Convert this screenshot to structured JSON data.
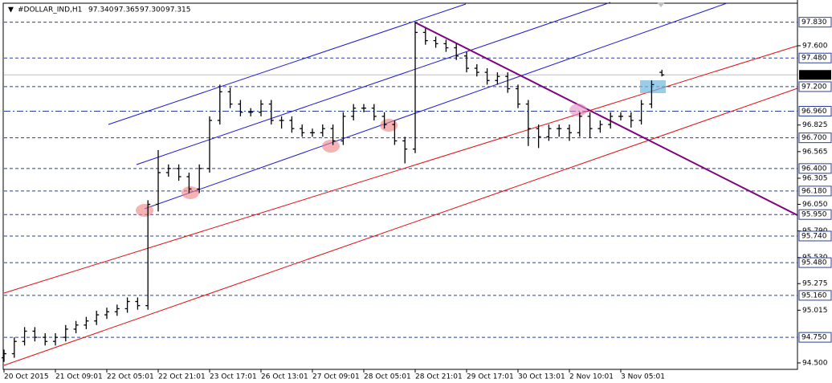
{
  "chart_data": {
    "type": "ohlc",
    "header": {
      "symbol": "#DOLLAR_IND,H1",
      "ohlc": [
        "97.340",
        "97.365",
        "97.300",
        "97.315"
      ]
    },
    "categories": [
      "20 Oct 2015",
      null,
      null,
      null,
      null,
      "21 Oct 09:01",
      null,
      null,
      null,
      null,
      "22 Oct 05:01",
      null,
      null,
      null,
      null,
      "22 Oct 21:01",
      null,
      null,
      null,
      null,
      "23 Oct 17:01",
      null,
      null,
      null,
      null,
      "26 Oct 13:01",
      null,
      null,
      null,
      null,
      "27 Oct 09:01",
      null,
      null,
      null,
      null,
      "28 Oct 05:01",
      null,
      null,
      null,
      null,
      "28 Oct 21:01",
      null,
      null,
      null,
      null,
      "29 Oct 17:01",
      null,
      null,
      null,
      null,
      "30 Oct 13:01",
      null,
      null,
      null,
      null,
      "2 Nov 10:01",
      null,
      null,
      null,
      null,
      "3 Nov 05:01",
      null,
      null,
      null,
      null
    ],
    "opens": [
      94.55,
      94.59,
      94.71,
      94.81,
      94.75,
      94.71,
      94.75,
      94.83,
      94.87,
      94.91,
      94.97,
      95.0,
      95.03,
      95.1,
      95.06,
      96.05,
      96.36,
      96.4,
      96.32,
      96.2,
      96.4,
      96.87,
      97.15,
      97.03,
      96.95,
      96.95,
      97.03,
      96.87,
      96.87,
      96.79,
      96.75,
      96.75,
      96.79,
      96.67,
      96.91,
      96.99,
      96.99,
      96.91,
      96.83,
      96.67,
      96.59,
      97.73,
      97.65,
      97.62,
      97.58,
      97.5,
      97.38,
      97.34,
      97.26,
      97.3,
      97.18,
      97.03,
      96.79,
      96.71,
      96.79,
      96.79,
      96.75,
      96.91,
      96.79,
      96.83,
      96.91,
      96.91,
      96.87,
      97.03,
      97.34
    ],
    "highs": [
      94.63,
      94.75,
      94.85,
      94.85,
      94.79,
      94.79,
      94.87,
      94.91,
      94.95,
      95.01,
      95.04,
      95.07,
      95.14,
      95.14,
      96.09,
      96.58,
      96.44,
      96.44,
      96.36,
      96.44,
      96.91,
      97.22,
      97.19,
      97.07,
      96.99,
      97.07,
      97.07,
      96.91,
      96.91,
      96.83,
      96.79,
      96.83,
      96.83,
      96.95,
      97.03,
      97.03,
      97.03,
      96.95,
      96.87,
      96.71,
      97.83,
      97.77,
      97.69,
      97.66,
      97.62,
      97.54,
      97.42,
      97.38,
      97.34,
      97.34,
      97.22,
      97.07,
      96.83,
      96.83,
      96.83,
      96.83,
      96.95,
      96.95,
      96.87,
      96.95,
      96.95,
      96.95,
      97.07,
      97.26,
      97.365
    ],
    "lows": [
      94.51,
      94.55,
      94.67,
      94.71,
      94.67,
      94.67,
      94.71,
      94.79,
      94.83,
      94.87,
      94.93,
      94.96,
      94.99,
      95.02,
      95.02,
      95.98,
      96.32,
      96.28,
      96.16,
      96.16,
      96.36,
      96.83,
      96.99,
      96.91,
      96.91,
      96.91,
      96.83,
      96.79,
      96.75,
      96.71,
      96.71,
      96.71,
      96.63,
      96.63,
      96.87,
      96.95,
      96.87,
      96.79,
      96.63,
      96.45,
      96.55,
      97.61,
      97.58,
      97.54,
      97.46,
      97.34,
      97.3,
      97.22,
      97.22,
      97.14,
      96.99,
      96.62,
      96.6,
      96.67,
      96.71,
      96.67,
      96.71,
      96.7,
      96.75,
      96.79,
      96.87,
      96.8,
      96.83,
      96.99,
      97.3
    ],
    "closes": [
      94.59,
      94.71,
      94.81,
      94.75,
      94.71,
      94.75,
      94.83,
      94.87,
      94.91,
      94.97,
      95.0,
      95.03,
      95.1,
      95.06,
      96.05,
      96.36,
      96.4,
      96.32,
      96.2,
      96.4,
      96.87,
      97.15,
      97.03,
      96.95,
      96.95,
      97.03,
      96.87,
      96.87,
      96.79,
      96.75,
      96.75,
      96.79,
      96.67,
      96.91,
      96.99,
      96.99,
      96.91,
      96.83,
      96.67,
      96.59,
      97.73,
      97.65,
      97.62,
      97.58,
      97.5,
      97.38,
      97.34,
      97.26,
      97.3,
      97.18,
      97.03,
      96.79,
      96.71,
      96.79,
      96.79,
      96.75,
      96.91,
      96.79,
      96.83,
      96.91,
      96.91,
      96.87,
      97.03,
      97.22,
      97.315
    ],
    "color": "#000000",
    "ylim": [
      94.437,
      98.047
    ],
    "yticks": [
      {
        "value": 97.6,
        "label": "97.600"
      },
      {
        "value": 96.825,
        "label": "96.825"
      },
      {
        "value": 96.565,
        "label": "96.565"
      },
      {
        "value": 96.305,
        "label": "96.305"
      },
      {
        "value": 96.05,
        "label": "96.050"
      },
      {
        "value": 95.79,
        "label": "95.790"
      },
      {
        "value": 95.53,
        "label": "95.530"
      },
      {
        "value": 95.275,
        "label": "95.275"
      },
      {
        "value": 95.015,
        "label": "95.015"
      },
      {
        "value": 94.5,
        "label": "94.500"
      }
    ],
    "levels": [
      {
        "value": 97.83,
        "label": "97.830"
      },
      {
        "value": 97.48,
        "label": "97.480"
      },
      {
        "value": 97.2,
        "label": "97.200"
      },
      {
        "value": 96.96,
        "label": "96.960"
      },
      {
        "value": 96.7,
        "label": "96.700"
      },
      {
        "value": 96.4,
        "label": "96.400"
      },
      {
        "value": 96.18,
        "label": "96.180"
      },
      {
        "value": 95.95,
        "label": "95.950"
      },
      {
        "value": 95.74,
        "label": "95.740"
      },
      {
        "value": 95.48,
        "label": "95.480"
      },
      {
        "value": 95.16,
        "label": "95.160"
      },
      {
        "value": 94.75,
        "label": "94.750"
      }
    ],
    "level_color": "#2a3f9e",
    "current_price": {
      "value": 97.315,
      "label": "97.315"
    }
  }
}
